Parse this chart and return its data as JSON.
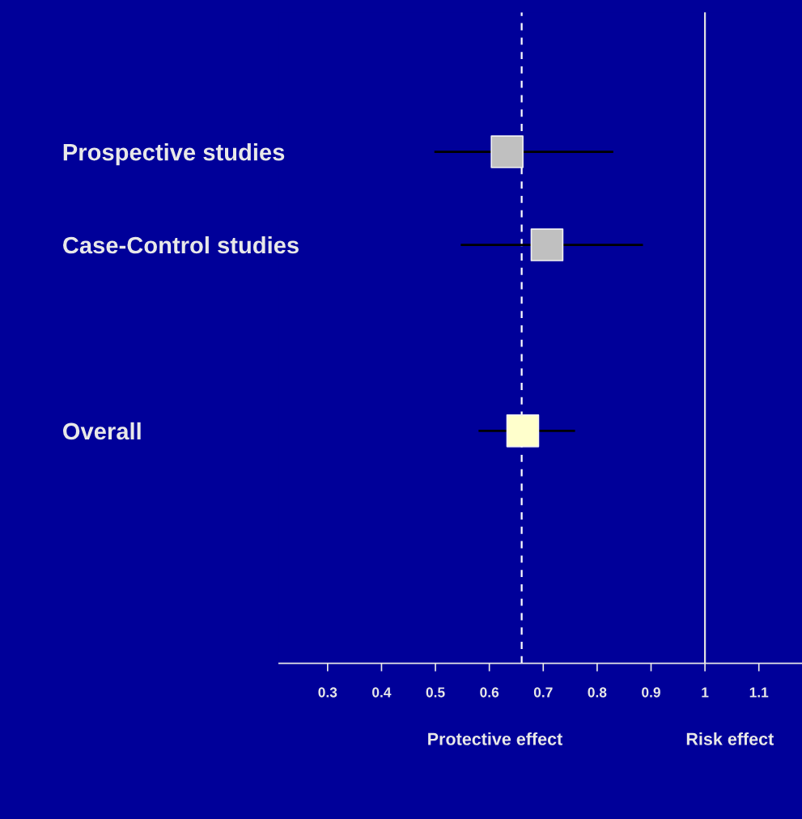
{
  "chart_data": {
    "type": "scatter",
    "orientation": "horizontal",
    "categories": [
      null,
      "Prospective studies",
      "Case-Control studies",
      null,
      "Overall",
      null,
      null
    ],
    "values": [
      null,
      0.633,
      0.707,
      null,
      0.662,
      null,
      null
    ],
    "errors": [
      null,
      [
        0.498,
        0.83
      ],
      [
        0.547,
        0.885
      ],
      null,
      [
        0.58,
        0.759
      ],
      null,
      null
    ],
    "colors": [
      "#c0c0c0",
      "#c0c0c0",
      "#c0c0c0",
      "#c0c0c0",
      "#ffffcc",
      "#c0c0c0",
      "#c0c0c0"
    ],
    "marker": "square",
    "xlim": [
      0.21,
      1.18
    ],
    "xticks": [
      0.3,
      0.4,
      0.5,
      0.6,
      0.7,
      0.8,
      0.9,
      1,
      1.1
    ],
    "ref_lines": [
      {
        "axis": "x",
        "value": 0.66,
        "line_style": "dashed",
        "color": "#ffffff"
      },
      {
        "axis": "x",
        "value": 1,
        "line_style": "solid",
        "color": "#e0e0e0"
      }
    ],
    "annotations": [
      "Protective effect",
      "Risk effect"
    ],
    "grid": false
  }
}
